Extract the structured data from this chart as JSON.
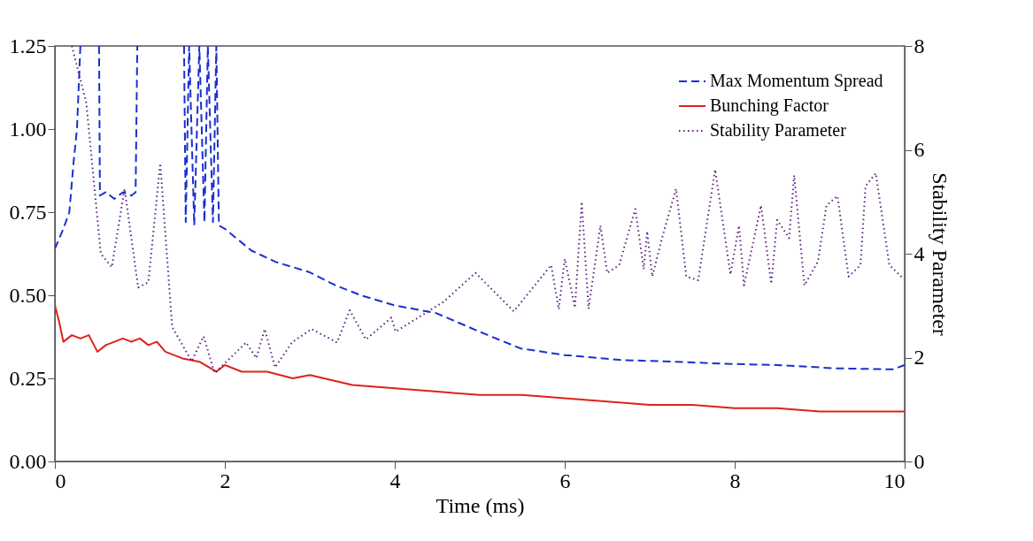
{
  "chart_data": {
    "type": "line",
    "xlabel": "Time (ms)",
    "y2label": "Stability Parameter",
    "xlim": [
      0,
      10
    ],
    "xticks": [
      0,
      2,
      4,
      6,
      8,
      10
    ],
    "ylim": [
      0,
      1.25
    ],
    "yticks": [
      {
        "value": 0,
        "label": "0.00"
      },
      0.25,
      {
        "value": 0.5,
        "label": "0.50"
      },
      0.75,
      {
        "value": 1,
        "label": "1.00"
      },
      1.25
    ],
    "y2lim": [
      0,
      8
    ],
    "y2ticks": [
      0,
      2,
      4,
      6,
      8
    ],
    "grid": false,
    "legend": "top right",
    "series": [
      {
        "name": "Max Momentum Spread",
        "color": "#1a2fd0",
        "line_style": "dashed",
        "x": [
          0,
          0.1,
          0.17,
          0.22,
          0.26,
          0.3,
          0.4,
          0.52,
          0.53,
          0.6,
          0.7,
          0.8,
          0.9,
          0.95,
          0.97,
          1.2,
          1.52,
          1.54,
          1.58,
          1.64,
          1.7,
          1.76,
          1.8,
          1.86,
          1.9,
          1.93,
          2.0,
          2.31,
          2.6,
          2.99,
          3.3,
          3.6,
          3.99,
          4.49,
          5.0,
          5.48,
          6.0,
          6.68,
          7.3,
          7.87,
          8.5,
          9.2,
          9.86,
          10
        ],
        "values": [
          0.64,
          0.7,
          0.75,
          0.9,
          1.0,
          1.25,
          null,
          1.25,
          0.8,
          0.81,
          0.79,
          0.81,
          0.8,
          0.81,
          1.25,
          null,
          1.25,
          0.72,
          1.25,
          0.71,
          1.25,
          0.72,
          1.25,
          0.72,
          1.25,
          0.71,
          0.7,
          0.635,
          0.6,
          0.57,
          0.53,
          0.5,
          0.47,
          0.446,
          0.39,
          0.34,
          0.32,
          0.305,
          0.3,
          0.294,
          0.29,
          0.28,
          0.277,
          0.29
        ]
      },
      {
        "name": "Bunching Factor",
        "color": "#e0201b",
        "line_style": "solid",
        "x": [
          0,
          0.05,
          0.1,
          0.2,
          0.3,
          0.4,
          0.5,
          0.6,
          0.7,
          0.8,
          0.9,
          1.0,
          1.1,
          1.2,
          1.3,
          1.5,
          1.7,
          1.9,
          2.0,
          2.2,
          2.5,
          2.8,
          3.0,
          3.5,
          4.0,
          4.5,
          5.0,
          5.5,
          6.0,
          6.5,
          7.0,
          7.5,
          8.0,
          8.5,
          9.0,
          9.5,
          10
        ],
        "values": [
          0.47,
          0.42,
          0.36,
          0.38,
          0.37,
          0.38,
          0.33,
          0.35,
          0.36,
          0.37,
          0.36,
          0.37,
          0.35,
          0.36,
          0.33,
          0.31,
          0.3,
          0.27,
          0.29,
          0.27,
          0.27,
          0.25,
          0.26,
          0.23,
          0.22,
          0.21,
          0.2,
          0.2,
          0.19,
          0.18,
          0.17,
          0.17,
          0.16,
          0.16,
          0.15,
          0.15,
          0.15
        ]
      },
      {
        "name": "Stability Parameter",
        "color": "#5a2080",
        "line_style": "dotted",
        "axis": "y2",
        "x": [
          0.2,
          0.37,
          0.54,
          0.67,
          0.82,
          0.98,
          1.1,
          1.24,
          1.38,
          1.61,
          1.75,
          1.88,
          2.25,
          2.37,
          2.47,
          2.59,
          2.79,
          3.02,
          3.32,
          3.47,
          3.66,
          3.96,
          4.01,
          4.57,
          4.95,
          5.4,
          5.84,
          5.93,
          6.0,
          6.12,
          6.2,
          6.28,
          6.42,
          6.5,
          6.64,
          6.83,
          6.93,
          6.97,
          7.03,
          7.15,
          7.31,
          7.43,
          7.57,
          7.77,
          7.95,
          8.05,
          8.11,
          8.31,
          8.43,
          8.5,
          8.64,
          8.7,
          8.82,
          8.98,
          9.08,
          9.21,
          9.34,
          9.48,
          9.54,
          9.66,
          9.82,
          9.98
        ],
        "values": [
          8,
          6.9,
          4.0,
          3.74,
          5.25,
          3.35,
          3.45,
          5.74,
          2.59,
          1.93,
          2.41,
          1.7,
          2.29,
          1.99,
          2.55,
          1.81,
          2.29,
          2.55,
          2.29,
          2.91,
          2.35,
          2.77,
          2.5,
          3.07,
          3.63,
          2.89,
          3.78,
          2.93,
          3.9,
          2.96,
          5.0,
          2.94,
          4.54,
          3.63,
          3.78,
          4.86,
          3.7,
          4.43,
          3.56,
          4.33,
          5.25,
          3.56,
          3.49,
          5.62,
          3.6,
          4.54,
          3.39,
          4.93,
          3.42,
          4.65,
          4.3,
          5.51,
          3.39,
          3.85,
          4.93,
          5.11,
          3.56,
          3.78,
          5.3,
          5.55,
          3.78,
          3.53
        ]
      }
    ]
  }
}
